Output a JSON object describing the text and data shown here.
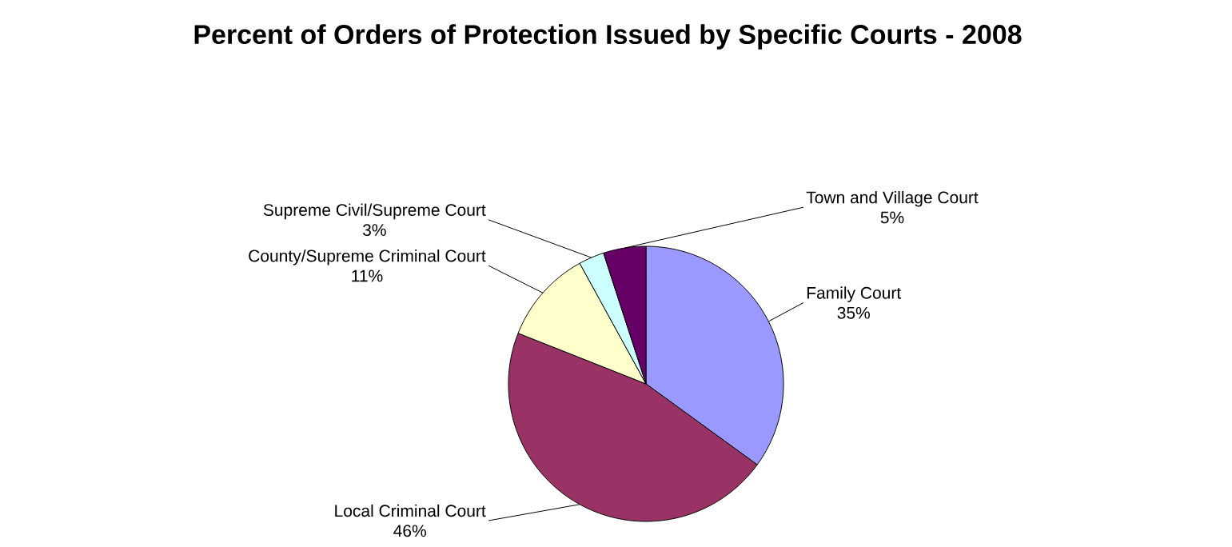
{
  "chart_data": {
    "type": "pie",
    "title": "Percent of Orders of Protection Issued by Specific Courts - 2008",
    "categories": [
      "Family Court",
      "Local Criminal Court",
      "County/Supreme Criminal Court",
      "Supreme Civil/Supreme Court",
      "Town and Village Court"
    ],
    "values": [
      35,
      46,
      11,
      3,
      5
    ],
    "colors": [
      "#9999ff",
      "#993366",
      "#ffffcc",
      "#ccffff",
      "#660066"
    ],
    "value_labels": [
      "35%",
      "46%",
      "11%",
      "3%",
      "5%"
    ]
  }
}
